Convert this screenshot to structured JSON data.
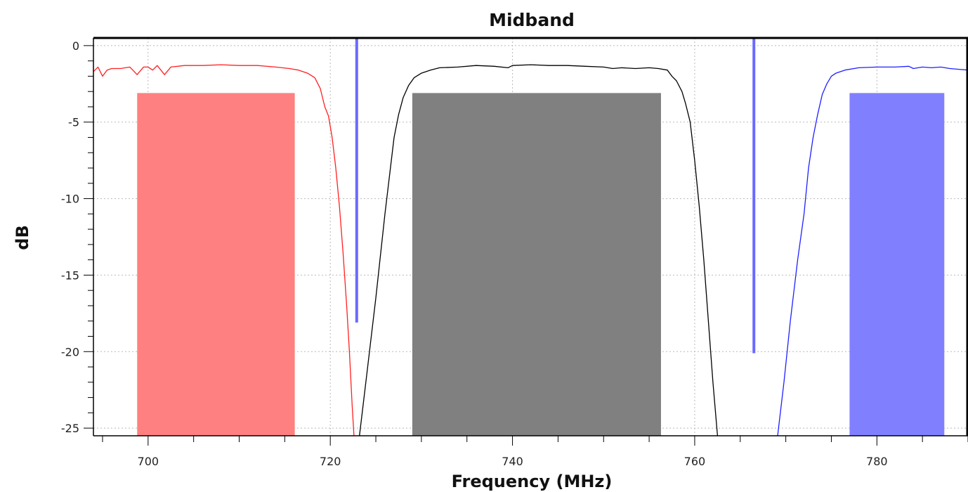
{
  "chart_data": {
    "type": "line",
    "title": "Midband",
    "xlabel": "Frequency (MHz)",
    "ylabel": "dB",
    "xlim": [
      694,
      790
    ],
    "ylim": [
      -25.5,
      0.5
    ],
    "grid": true,
    "x_ticks": [
      700,
      720,
      740,
      760,
      780
    ],
    "x_minor_step": 5,
    "y_ticks": [
      0,
      -5,
      -10,
      -15,
      -20,
      -25
    ],
    "y_minor_step": 1,
    "bands": [
      {
        "x_start": 698.8,
        "x_end": 716.1,
        "top": -3.1,
        "color": "#ff8080"
      },
      {
        "x_start": 729.0,
        "x_end": 756.3,
        "top": -3.1,
        "color": "#808080"
      },
      {
        "x_start": 777.0,
        "x_end": 787.4,
        "top": -3.1,
        "color": "#8080ff"
      }
    ],
    "markers": [
      {
        "x": 722.9,
        "y_bottom": -18.1,
        "color": "#6a6aff"
      },
      {
        "x": 766.5,
        "y_bottom": -20.1,
        "color": "#6a6aff"
      }
    ],
    "series": [
      {
        "color": "#ff2020",
        "points": [
          [
            694,
            -1.7
          ],
          [
            694.5,
            -1.4
          ],
          [
            695,
            -2.0
          ],
          [
            695.5,
            -1.6
          ],
          [
            696,
            -1.5
          ],
          [
            697,
            -1.5
          ],
          [
            698,
            -1.4
          ],
          [
            698.8,
            -1.9
          ],
          [
            699.5,
            -1.4
          ],
          [
            700,
            -1.4
          ],
          [
            700.5,
            -1.6
          ],
          [
            701,
            -1.3
          ],
          [
            701.8,
            -1.9
          ],
          [
            702.5,
            -1.4
          ],
          [
            704,
            -1.3
          ],
          [
            706,
            -1.3
          ],
          [
            708,
            -1.25
          ],
          [
            710,
            -1.3
          ],
          [
            712,
            -1.3
          ],
          [
            714,
            -1.4
          ],
          [
            715.5,
            -1.5
          ],
          [
            716.5,
            -1.6
          ],
          [
            717.5,
            -1.8
          ],
          [
            718.3,
            -2.1
          ],
          [
            718.9,
            -2.8
          ],
          [
            719.4,
            -4.0
          ],
          [
            719.8,
            -4.6
          ],
          [
            720.2,
            -6.0
          ],
          [
            720.6,
            -8.0
          ],
          [
            721.0,
            -10.5
          ],
          [
            721.4,
            -13.5
          ],
          [
            721.8,
            -17.0
          ],
          [
            722.1,
            -20.0
          ],
          [
            722.4,
            -23.5
          ],
          [
            722.6,
            -25.5
          ]
        ]
      },
      {
        "color": "#000000",
        "points": [
          [
            723.2,
            -25.5
          ],
          [
            724,
            -21.5
          ],
          [
            725,
            -16.5
          ],
          [
            726,
            -11.0
          ],
          [
            727,
            -6.0
          ],
          [
            727.5,
            -4.5
          ],
          [
            728,
            -3.4
          ],
          [
            728.6,
            -2.6
          ],
          [
            729.2,
            -2.1
          ],
          [
            730,
            -1.8
          ],
          [
            731,
            -1.6
          ],
          [
            732,
            -1.45
          ],
          [
            734,
            -1.4
          ],
          [
            736,
            -1.3
          ],
          [
            738,
            -1.35
          ],
          [
            739.5,
            -1.45
          ],
          [
            740,
            -1.3
          ],
          [
            742,
            -1.25
          ],
          [
            744,
            -1.3
          ],
          [
            746,
            -1.3
          ],
          [
            748,
            -1.35
          ],
          [
            750,
            -1.4
          ],
          [
            751,
            -1.5
          ],
          [
            752,
            -1.45
          ],
          [
            753.5,
            -1.5
          ],
          [
            755,
            -1.45
          ],
          [
            756,
            -1.5
          ],
          [
            757,
            -1.6
          ],
          [
            757.5,
            -2.0
          ],
          [
            758,
            -2.3
          ],
          [
            758.6,
            -3.0
          ],
          [
            759,
            -3.8
          ],
          [
            759.5,
            -5.0
          ],
          [
            760,
            -7.5
          ],
          [
            760.5,
            -10.5
          ],
          [
            761,
            -14.0
          ],
          [
            761.5,
            -18.0
          ],
          [
            762,
            -22.0
          ],
          [
            762.5,
            -25.5
          ]
        ]
      },
      {
        "color": "#2020ff",
        "points": [
          [
            769.1,
            -25.5
          ],
          [
            769.8,
            -22.0
          ],
          [
            770.5,
            -18.0
          ],
          [
            771.3,
            -14.0
          ],
          [
            772,
            -11.0
          ],
          [
            772.5,
            -8.0
          ],
          [
            773,
            -6.0
          ],
          [
            773.5,
            -4.5
          ],
          [
            774,
            -3.2
          ],
          [
            774.5,
            -2.5
          ],
          [
            775,
            -2.0
          ],
          [
            775.5,
            -1.8
          ],
          [
            776.5,
            -1.6
          ],
          [
            778,
            -1.45
          ],
          [
            780,
            -1.4
          ],
          [
            782,
            -1.4
          ],
          [
            783.5,
            -1.35
          ],
          [
            784,
            -1.5
          ],
          [
            785,
            -1.4
          ],
          [
            786,
            -1.45
          ],
          [
            787,
            -1.4
          ],
          [
            788,
            -1.5
          ],
          [
            789,
            -1.55
          ],
          [
            790,
            -1.6
          ]
        ]
      }
    ]
  }
}
